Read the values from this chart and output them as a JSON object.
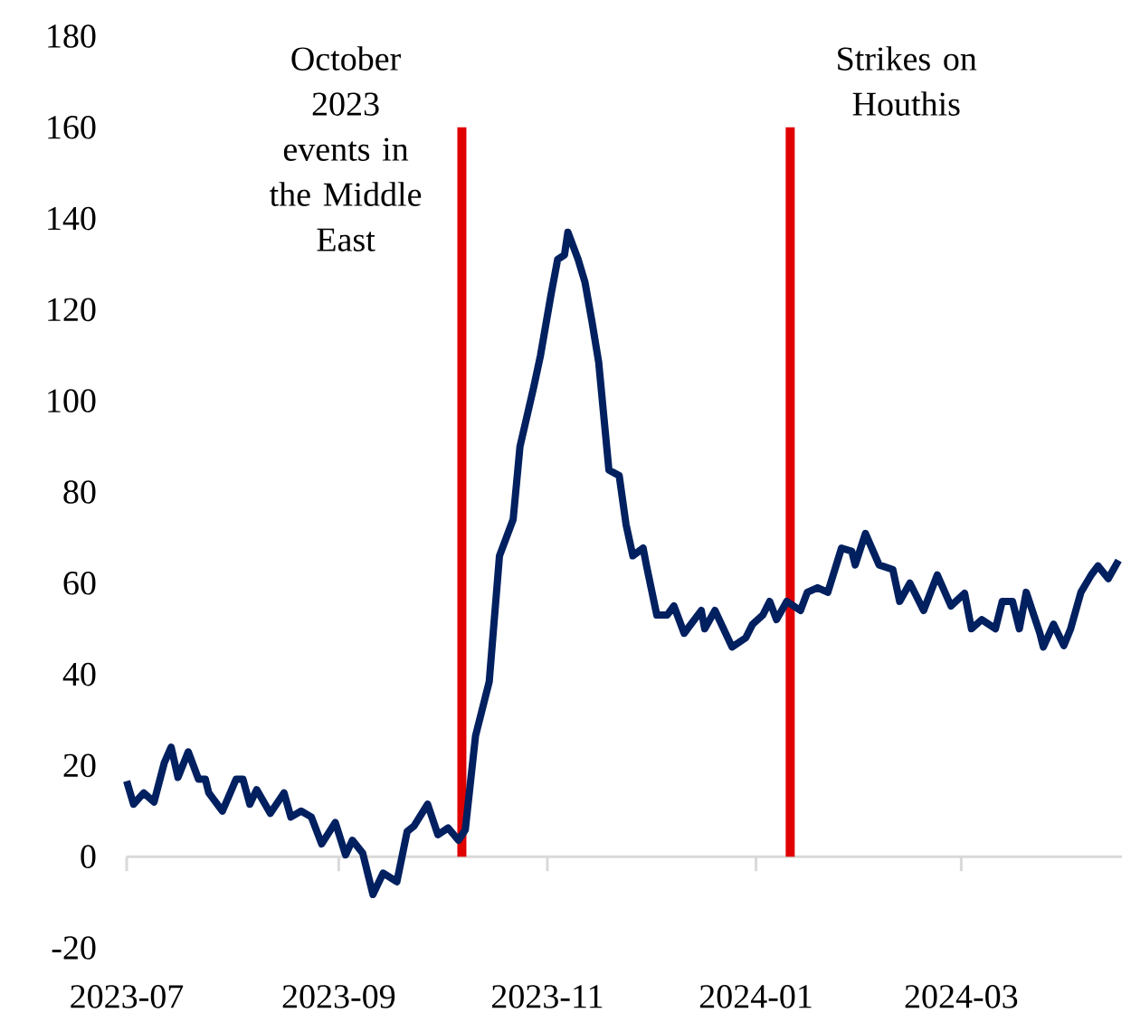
{
  "chart_data": {
    "type": "line",
    "xlim": [
      "2023-07-01",
      "2024-04-17"
    ],
    "ylim": [
      -20,
      180
    ],
    "xticks": [
      "2023-07",
      "2023-09",
      "2023-11",
      "2024-01",
      "2024-03"
    ],
    "yticks": [
      -20,
      0,
      20,
      40,
      60,
      80,
      100,
      120,
      140,
      160,
      180
    ],
    "series": [
      {
        "color": "#e00000",
        "x": [
          "2023-10-07",
          "2023-10-07"
        ],
        "values": [
          0,
          160
        ]
      },
      {
        "color": "#e00000",
        "x": [
          "2024-01-11",
          "2024-01-11"
        ],
        "values": [
          0,
          160
        ]
      },
      {
        "color": "#002060",
        "x": [
          "2023-07-01",
          "2023-07-03",
          "2023-07-06",
          "2023-07-09",
          "2023-07-12",
          "2023-07-14",
          "2023-07-16",
          "2023-07-19",
          "2023-07-22",
          "2023-07-24",
          "2023-07-25",
          "2023-07-29",
          "2023-08-02",
          "2023-08-04",
          "2023-08-06",
          "2023-08-08",
          "2023-08-12",
          "2023-08-16",
          "2023-08-18",
          "2023-08-21",
          "2023-08-24",
          "2023-08-27",
          "2023-08-31",
          "2023-09-03",
          "2023-09-05",
          "2023-09-08",
          "2023-09-11",
          "2023-09-14",
          "2023-09-18",
          "2023-09-21",
          "2023-09-23",
          "2023-09-27",
          "2023-09-30",
          "2023-10-03",
          "2023-10-06",
          "2023-10-08",
          "2023-10-11",
          "2023-10-15",
          "2023-10-18",
          "2023-10-22",
          "2023-10-24",
          "2023-10-28",
          "2023-10-30",
          "2023-11-02",
          "2023-11-04",
          "2023-11-06",
          "2023-11-07",
          "2023-11-10",
          "2023-11-12",
          "2023-11-14",
          "2023-11-16",
          "2023-11-19",
          "2023-11-22",
          "2023-11-24",
          "2023-11-26",
          "2023-11-29",
          "2023-11-30",
          "2023-12-03",
          "2023-12-06",
          "2023-12-08",
          "2023-12-11",
          "2023-12-16",
          "2023-12-17",
          "2023-12-20",
          "2023-12-25",
          "2023-12-29",
          "2023-12-31",
          "2024-01-03",
          "2024-01-05",
          "2024-01-07",
          "2024-01-10",
          "2024-01-14",
          "2024-01-16",
          "2024-01-19",
          "2024-01-22",
          "2024-01-26",
          "2024-01-29",
          "2024-01-30",
          "2024-02-02",
          "2024-02-06",
          "2024-02-10",
          "2024-02-12",
          "2024-02-15",
          "2024-02-19",
          "2024-02-23",
          "2024-02-27",
          "2024-03-02",
          "2024-03-04",
          "2024-03-07",
          "2024-03-11",
          "2024-03-13",
          "2024-03-16",
          "2024-03-18",
          "2024-03-20",
          "2024-03-24",
          "2024-03-25",
          "2024-03-28",
          "2024-03-31",
          "2024-04-02",
          "2024-04-05",
          "2024-04-08",
          "2024-04-10",
          "2024-04-13",
          "2024-04-16"
        ],
        "values": [
          16.6,
          11.5,
          14,
          12,
          20.6,
          24,
          17.4,
          23,
          17,
          17,
          14,
          10,
          17,
          17,
          11.5,
          14.7,
          9.5,
          14,
          8.7,
          10,
          8.7,
          2.8,
          7.5,
          0.4,
          3.6,
          0.8,
          -8.3,
          -3.6,
          -5.5,
          5.5,
          6.7,
          11.5,
          4.8,
          6.3,
          3.6,
          5.9,
          26.5,
          38.4,
          66,
          74,
          90,
          103,
          110,
          123,
          131,
          132,
          137,
          131,
          126,
          117.6,
          108.5,
          84.8,
          83.6,
          72.9,
          66,
          67.7,
          63.8,
          53,
          53,
          55,
          49,
          54,
          50,
          54,
          46,
          48,
          51,
          53,
          56,
          52,
          56,
          54,
          58,
          59,
          58,
          67.7,
          67,
          64,
          70.9,
          64,
          63,
          56,
          60,
          54,
          61.8,
          55,
          57.8,
          50,
          52,
          50,
          56,
          56,
          50,
          58,
          49,
          46,
          51,
          46.3,
          50,
          58,
          61.8,
          63.8,
          61,
          65
        ]
      }
    ],
    "annotations": [
      {
        "text": "October 2023 events in the Middle East",
        "x": "2023-10-07",
        "y": 160
      },
      {
        "text": "Strikes on Houthis",
        "x": "2024-01-11",
        "y": 160
      }
    ]
  }
}
